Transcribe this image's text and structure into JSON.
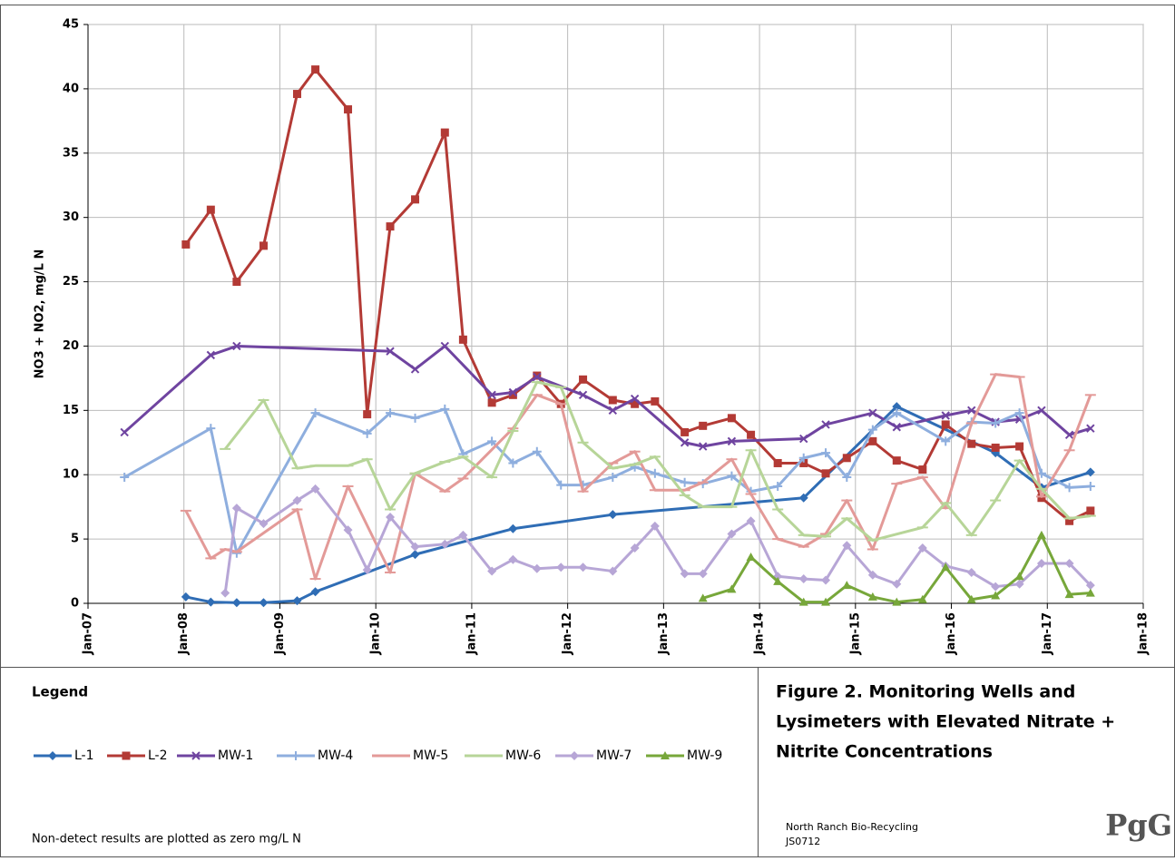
{
  "chart_data": {
    "type": "line",
    "ylabel": "NO3 + NO2, mg/L N",
    "xlim": [
      2007,
      2018
    ],
    "xticks": [
      {
        "value": 2007,
        "label": "Jan-07"
      },
      {
        "value": 2008,
        "label": "Jan-08"
      },
      {
        "value": 2009,
        "label": "Jan-09"
      },
      {
        "value": 2010,
        "label": "Jan-10"
      },
      {
        "value": 2011,
        "label": "Jan-11"
      },
      {
        "value": 2012,
        "label": "Jan-12"
      },
      {
        "value": 2013,
        "label": "Jan-13"
      },
      {
        "value": 2014,
        "label": "Jan-14"
      },
      {
        "value": 2015,
        "label": "Jan-15"
      },
      {
        "value": 2016,
        "label": "Jan-16"
      },
      {
        "value": 2017,
        "label": "Jan-17"
      },
      {
        "value": 2018,
        "label": "Jan-18"
      }
    ],
    "ylim": [
      0,
      45
    ],
    "yticks": [
      0,
      5,
      10,
      15,
      20,
      25,
      30,
      35,
      40,
      45
    ],
    "grid": true,
    "legend_title": "Legend",
    "note": "Non-detect results are plotted as zero mg/L N",
    "series": [
      {
        "name": "L-1",
        "color": "#2f6db5",
        "marker": "diamond",
        "x": [
          2008.02,
          2008.28,
          2008.55,
          2008.83,
          2009.18,
          2009.37,
          2010.41,
          2011.43,
          2012.47,
          2014.46,
          2015.43,
          2016.46,
          2016.94,
          2017.45
        ],
        "values": [
          0.5,
          0.1,
          0.05,
          0.05,
          0.2,
          0.9,
          3.8,
          5.8,
          6.9,
          8.2,
          15.3,
          11.7,
          9.0,
          10.2
        ]
      },
      {
        "name": "L-2",
        "color": "#b33a35",
        "marker": "square",
        "x": [
          2008.02,
          2008.28,
          2008.55,
          2008.83,
          2009.18,
          2009.37,
          2009.71,
          2009.91,
          2010.15,
          2010.41,
          2010.72,
          2010.91,
          2011.21,
          2011.43,
          2011.68,
          2011.93,
          2012.16,
          2012.47,
          2012.7,
          2012.91,
          2013.22,
          2013.41,
          2013.71,
          2013.91,
          2014.19,
          2014.46,
          2014.69,
          2014.91,
          2015.18,
          2015.43,
          2015.7,
          2015.94,
          2016.21,
          2016.46,
          2016.71,
          2016.94,
          2017.23,
          2017.45
        ],
        "values": [
          27.9,
          30.6,
          25.0,
          27.8,
          39.6,
          41.5,
          38.4,
          14.7,
          29.3,
          31.4,
          36.6,
          20.5,
          15.6,
          16.2,
          17.7,
          15.5,
          17.4,
          15.8,
          15.5,
          15.7,
          13.3,
          13.8,
          14.4,
          13.1,
          10.9,
          10.9,
          10.1,
          11.3,
          12.6,
          11.1,
          10.4,
          13.9,
          12.4,
          12.1,
          12.2,
          8.2,
          6.4,
          7.2
        ]
      },
      {
        "name": "MW-1",
        "color": "#6f44a0",
        "marker": "x",
        "x": [
          2007.38,
          2008.28,
          2008.55,
          2010.15,
          2010.41,
          2010.72,
          2011.21,
          2011.43,
          2011.68,
          2012.16,
          2012.47,
          2012.7,
          2013.22,
          2013.41,
          2013.71,
          2014.46,
          2014.69,
          2015.18,
          2015.43,
          2015.94,
          2016.21,
          2016.46,
          2016.71,
          2016.94,
          2017.23,
          2017.45
        ],
        "values": [
          13.3,
          19.3,
          20.0,
          19.6,
          18.2,
          20.0,
          16.2,
          16.4,
          17.6,
          16.2,
          15.0,
          15.9,
          12.5,
          12.2,
          12.6,
          12.8,
          13.9,
          14.8,
          13.7,
          14.6,
          15.0,
          14.1,
          14.3,
          15.0,
          13.1,
          13.6
        ]
      },
      {
        "name": "MW-4",
        "color": "#8eaede",
        "marker": "plus",
        "x": [
          2007.38,
          2008.28,
          2008.55,
          2009.37,
          2009.91,
          2010.15,
          2010.41,
          2010.72,
          2010.91,
          2011.21,
          2011.43,
          2011.68,
          2011.93,
          2012.16,
          2012.47,
          2012.7,
          2012.91,
          2013.22,
          2013.41,
          2013.71,
          2013.91,
          2014.19,
          2014.46,
          2014.69,
          2014.91,
          2015.18,
          2015.43,
          2015.94,
          2016.21,
          2016.46,
          2016.71,
          2016.94,
          2017.23,
          2017.45
        ],
        "values": [
          9.8,
          13.6,
          3.9,
          14.8,
          13.2,
          14.8,
          14.4,
          15.1,
          11.6,
          12.6,
          10.9,
          11.8,
          9.2,
          9.2,
          9.8,
          10.6,
          10.1,
          9.4,
          9.3,
          9.9,
          8.7,
          9.1,
          11.3,
          11.7,
          9.8,
          13.5,
          14.8,
          12.6,
          14.1,
          14.0,
          14.8,
          10.1,
          9.0,
          9.1
        ]
      },
      {
        "name": "MW-5",
        "color": "#e39a98",
        "marker": "dash",
        "x": [
          2008.02,
          2008.28,
          2008.43,
          2008.55,
          2009.18,
          2009.37,
          2009.71,
          2010.15,
          2010.41,
          2010.72,
          2010.91,
          2011.43,
          2011.68,
          2011.93,
          2012.16,
          2012.47,
          2012.7,
          2012.91,
          2013.22,
          2013.41,
          2013.71,
          2013.91,
          2014.19,
          2014.46,
          2014.69,
          2014.91,
          2015.18,
          2015.43,
          2015.7,
          2015.94,
          2016.21,
          2016.46,
          2016.71,
          2016.94,
          2017.23,
          2017.45
        ],
        "values": [
          7.2,
          3.5,
          4.2,
          4.0,
          7.3,
          1.9,
          9.1,
          2.4,
          10.1,
          8.7,
          9.7,
          13.6,
          16.2,
          15.5,
          8.7,
          10.9,
          11.8,
          8.8,
          8.8,
          9.4,
          11.2,
          8.5,
          5.0,
          4.4,
          5.4,
          8.0,
          4.2,
          9.3,
          9.8,
          7.4,
          14.0,
          17.8,
          17.6,
          8.3,
          11.9,
          16.2
        ]
      },
      {
        "name": "MW-6",
        "color": "#b7d598",
        "marker": "dash",
        "x": [
          2008.43,
          2008.83,
          2009.18,
          2009.37,
          2009.71,
          2009.91,
          2010.15,
          2010.41,
          2010.72,
          2010.91,
          2011.21,
          2011.43,
          2011.68,
          2011.93,
          2012.16,
          2012.47,
          2012.7,
          2012.91,
          2013.22,
          2013.41,
          2013.71,
          2013.91,
          2014.19,
          2014.46,
          2014.69,
          2014.91,
          2015.18,
          2015.7,
          2015.94,
          2016.21,
          2016.46,
          2016.71,
          2016.94,
          2017.23,
          2017.45
        ],
        "values": [
          12.0,
          15.8,
          10.5,
          10.7,
          10.7,
          11.2,
          7.3,
          10.1,
          11.0,
          11.4,
          9.8,
          13.4,
          17.2,
          16.8,
          12.5,
          10.5,
          10.8,
          11.4,
          8.4,
          7.5,
          7.5,
          11.9,
          7.3,
          5.3,
          5.2,
          6.6,
          4.9,
          5.9,
          7.8,
          5.3,
          8.0,
          11.1,
          8.9,
          6.6,
          6.8
        ]
      },
      {
        "name": "MW-7",
        "color": "#b7a6d6",
        "marker": "diamond",
        "x": [
          2008.43,
          2008.55,
          2008.83,
          2009.18,
          2009.37,
          2009.71,
          2009.91,
          2010.15,
          2010.41,
          2010.72,
          2010.91,
          2011.21,
          2011.43,
          2011.68,
          2011.93,
          2012.16,
          2012.47,
          2012.7,
          2012.91,
          2013.22,
          2013.41,
          2013.71,
          2013.91,
          2014.19,
          2014.46,
          2014.69,
          2014.91,
          2015.18,
          2015.43,
          2015.7,
          2015.94,
          2016.21,
          2016.46,
          2016.71,
          2016.94,
          2017.23,
          2017.45
        ],
        "values": [
          0.8,
          7.4,
          6.2,
          8.0,
          8.9,
          5.7,
          2.6,
          6.7,
          4.4,
          4.6,
          5.3,
          2.5,
          3.4,
          2.7,
          2.8,
          2.8,
          2.5,
          4.3,
          6.0,
          2.3,
          2.3,
          5.4,
          6.4,
          2.1,
          1.9,
          1.8,
          4.5,
          2.2,
          1.5,
          4.3,
          2.9,
          2.4,
          1.3,
          1.5,
          3.1,
          3.1,
          1.4
        ]
      },
      {
        "name": "MW-9",
        "color": "#77a73a",
        "marker": "triangle",
        "x": [
          2013.41,
          2013.71,
          2013.91,
          2014.19,
          2014.46,
          2014.69,
          2014.91,
          2015.18,
          2015.43,
          2015.7,
          2015.94,
          2016.21,
          2016.46,
          2016.71,
          2016.94,
          2017.23,
          2017.45
        ],
        "values": [
          0.4,
          1.1,
          3.6,
          1.7,
          0.1,
          0.1,
          1.4,
          0.5,
          0.1,
          0.3,
          2.8,
          0.3,
          0.6,
          2.1,
          5.3,
          0.7,
          0.8
        ]
      }
    ]
  },
  "figure": {
    "title_lines": [
      "Figure 2. Monitoring Wells and",
      "Lysimeters with Elevated Nitrate +",
      "Nitrite Concentrations"
    ],
    "client": "North Ranch Bio-Recycling",
    "project": "JS0712",
    "logo": "PgG"
  }
}
